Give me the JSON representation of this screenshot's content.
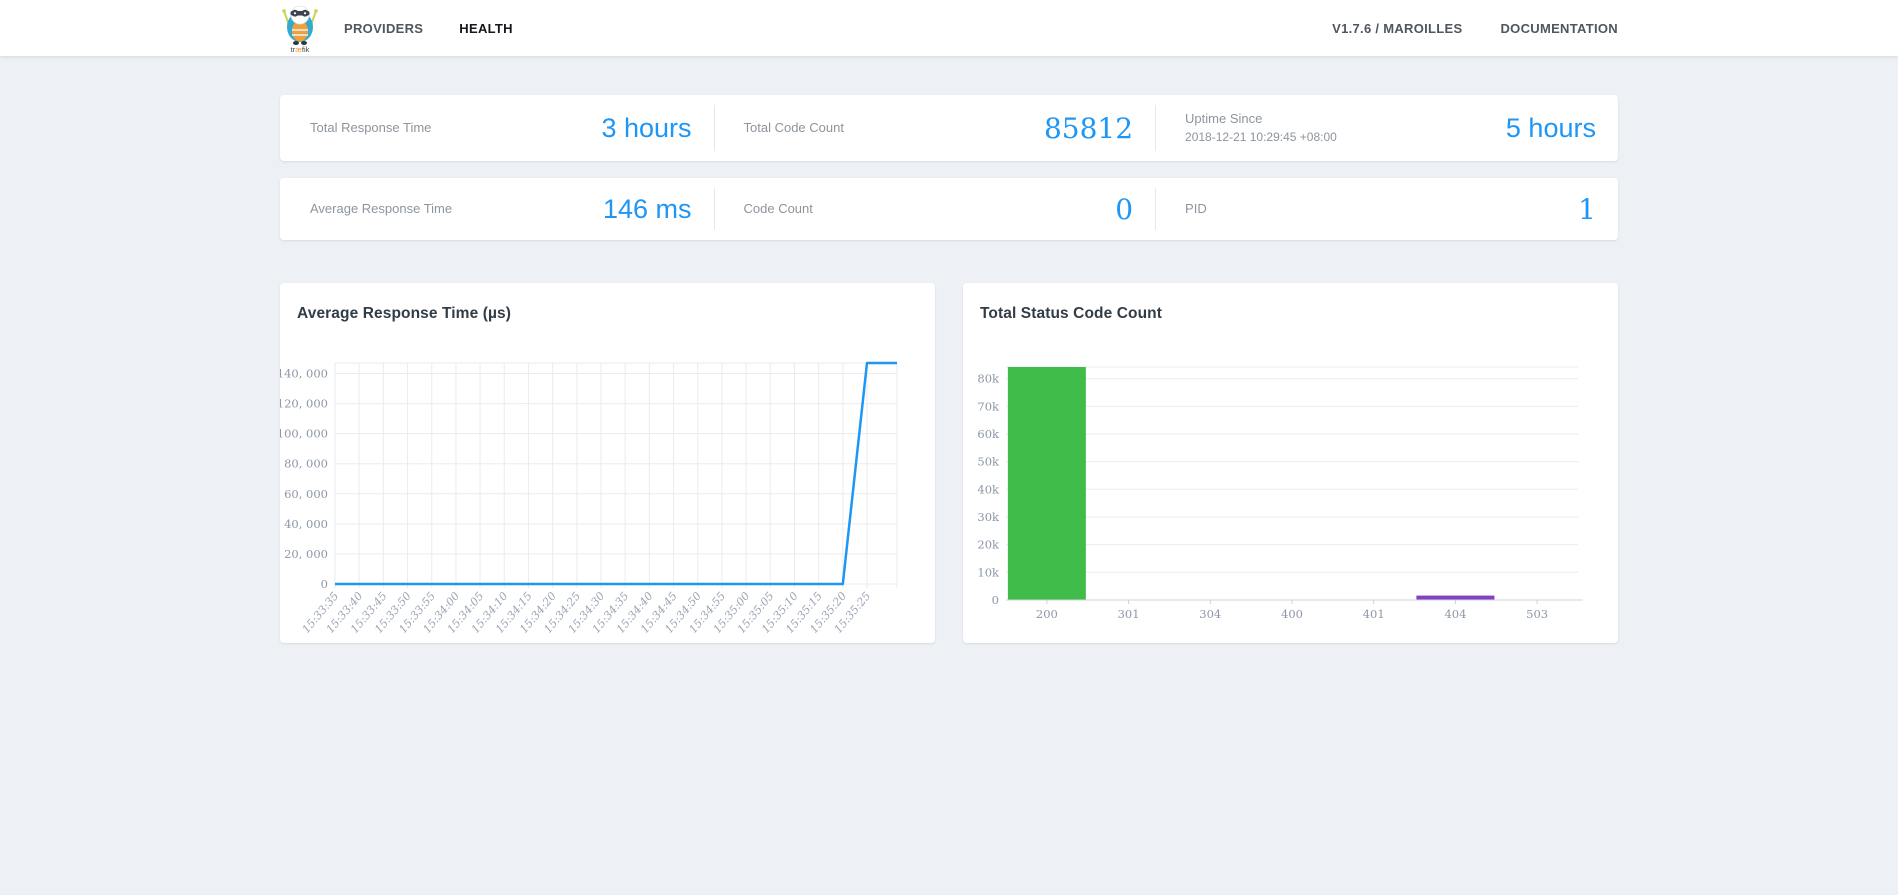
{
  "header": {
    "brand": {
      "prefix": "tr",
      "mid": "æ",
      "suffix": "fik"
    },
    "nav": {
      "providers": "PROVIDERS",
      "health": "HEALTH"
    },
    "right_nav": {
      "version": "V1.7.6 / MAROILLES",
      "documentation": "DOCUMENTATION"
    }
  },
  "stats": {
    "total_response_time": {
      "label": "Total Response Time",
      "value": "3 hours"
    },
    "total_code_count": {
      "label": "Total Code Count",
      "value": "85812"
    },
    "uptime": {
      "label": "Uptime Since",
      "sublabel": "2018-12-21 10:29:45 +08:00",
      "value": "5 hours"
    },
    "average_response_time": {
      "label": "Average Response Time",
      "value": "146 ms"
    },
    "code_count": {
      "label": "Code Count",
      "value": "0"
    },
    "pid": {
      "label": "PID",
      "value": "1"
    }
  },
  "colors": {
    "accent_blue": "#1e96f5",
    "line_blue": "#1e96f3",
    "bar_green": "#3fbc4a",
    "bar_purple": "#8041c4",
    "grid": "#e9ebf2",
    "axis": "#ccd3dc"
  },
  "chart_data": [
    {
      "type": "line",
      "title": "Average Response Time (µs)",
      "x": [
        "15:33:35",
        "15:33:40",
        "15:33:45",
        "15:33:50",
        "15:33:55",
        "15:34:00",
        "15:34:05",
        "15:34:10",
        "15:34:15",
        "15:34:20",
        "15:34:25",
        "15:34:30",
        "15:34:35",
        "15:34:40",
        "15:34:45",
        "15:34:50",
        "15:34:55",
        "15:35:00",
        "15:35:05",
        "15:35:10",
        "15:35:15",
        "15:35:20",
        "15:35:25"
      ],
      "values": [
        0,
        0,
        0,
        0,
        0,
        0,
        0,
        0,
        0,
        0,
        0,
        0,
        0,
        0,
        0,
        0,
        0,
        0,
        0,
        0,
        0,
        0,
        147000
      ],
      "ylim": [
        0,
        147000
      ],
      "yticks": [
        {
          "v": 0,
          "label": "0"
        },
        {
          "v": 20000,
          "label": "20, 000"
        },
        {
          "v": 40000,
          "label": "40, 000"
        },
        {
          "v": 60000,
          "label": "60, 000"
        },
        {
          "v": 80000,
          "label": "80, 000"
        },
        {
          "v": 100000,
          "label": "100, 000"
        },
        {
          "v": 120000,
          "label": "120, 000"
        },
        {
          "v": 140000,
          "label": "140, 000"
        }
      ],
      "grid": "both",
      "legend": "none",
      "line_color": "#1e96f3"
    },
    {
      "type": "bar",
      "title": "Total Status Code Count",
      "categories": [
        "200",
        "301",
        "304",
        "400",
        "401",
        "404",
        "503"
      ],
      "values": [
        84200,
        0,
        0,
        0,
        0,
        1600,
        0
      ],
      "bar_colors": [
        "#3fbc4a",
        null,
        null,
        null,
        null,
        "#8041c4",
        null
      ],
      "ylim": [
        0,
        84200
      ],
      "yticks": [
        {
          "v": 0,
          "label": "0"
        },
        {
          "v": 10000,
          "label": "10k"
        },
        {
          "v": 20000,
          "label": "20k"
        },
        {
          "v": 30000,
          "label": "30k"
        },
        {
          "v": 40000,
          "label": "40k"
        },
        {
          "v": 50000,
          "label": "50k"
        },
        {
          "v": 60000,
          "label": "60k"
        },
        {
          "v": 70000,
          "label": "70k"
        },
        {
          "v": 80000,
          "label": "80k"
        }
      ],
      "grid": "horizontal",
      "legend": "none"
    }
  ]
}
